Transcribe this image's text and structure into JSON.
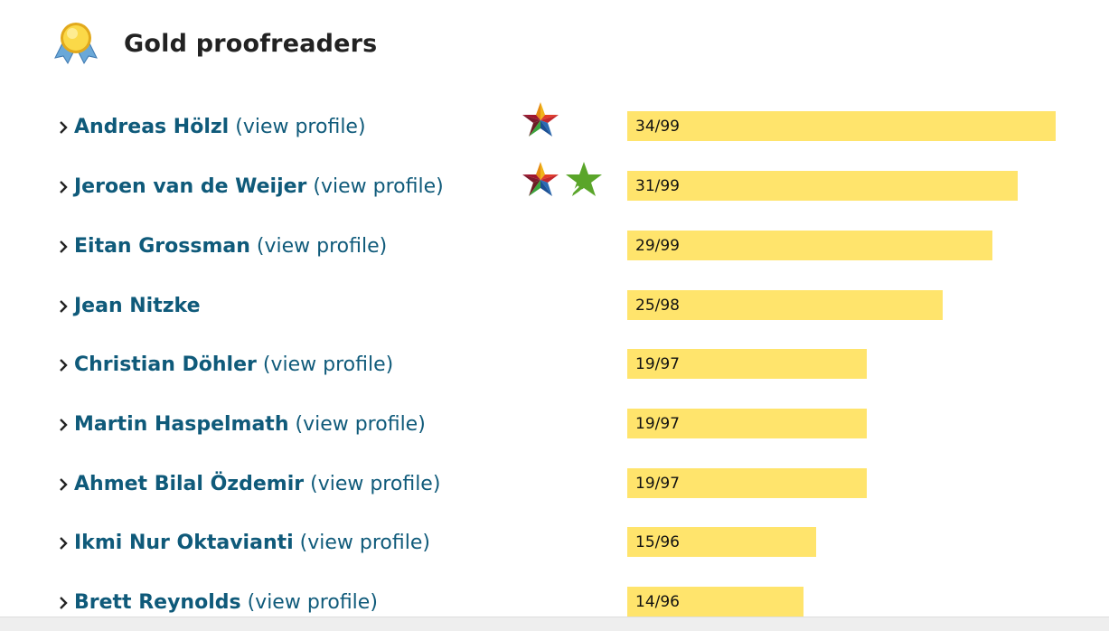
{
  "header": {
    "title": "Gold proofreaders",
    "icon": "gold-medal-icon"
  },
  "profile_link_label": "(view profile)",
  "colors": {
    "name": "#0f5a7a",
    "bar": "#ffe46c",
    "chevron": "#222222"
  },
  "proofreaders": [
    {
      "name": "Andreas Hölzl",
      "view_profile": "(view profile)",
      "score": "34/99",
      "count": 34,
      "badges": [
        "multicolor-star-icon"
      ]
    },
    {
      "name": "Jeroen van de Weijer",
      "view_profile": "(view profile)",
      "score": "31/99",
      "count": 31,
      "badges": [
        "multicolor-star-icon",
        "green-star-icon"
      ]
    },
    {
      "name": "Eitan Grossman",
      "view_profile": "(view profile)",
      "score": "29/99",
      "count": 29,
      "badges": []
    },
    {
      "name": "Jean Nitzke",
      "view_profile": "",
      "score": "25/98",
      "count": 25,
      "badges": []
    },
    {
      "name": "Christian Döhler",
      "view_profile": "(view profile)",
      "score": "19/97",
      "count": 19,
      "badges": []
    },
    {
      "name": "Martin Haspelmath",
      "view_profile": "(view profile)",
      "score": "19/97",
      "count": 19,
      "badges": []
    },
    {
      "name": "Ahmet Bilal Özdemir",
      "view_profile": "(view profile)",
      "score": "19/97",
      "count": 19,
      "badges": []
    },
    {
      "name": "Ikmi Nur Oktavianti",
      "view_profile": "(view profile)",
      "score": "15/96",
      "count": 15,
      "badges": []
    },
    {
      "name": "Brett Reynolds",
      "view_profile": "(view profile)",
      "score": "14/96",
      "count": 14,
      "badges": []
    }
  ]
}
